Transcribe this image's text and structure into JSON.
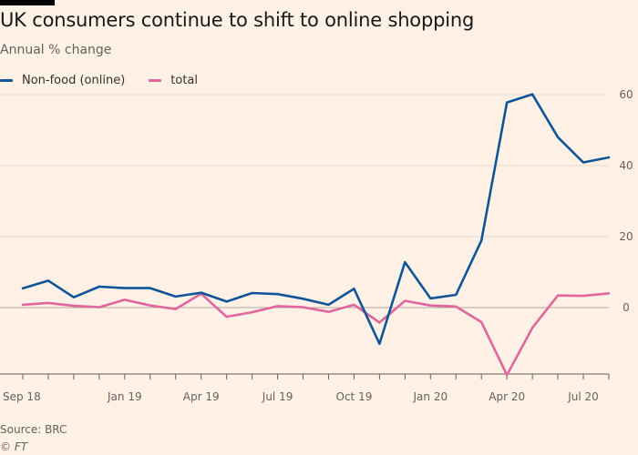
{
  "title": "UK consumers continue to shift to online shopping",
  "subtitle": "Annual % change",
  "source": "Source: BRC",
  "copyright": "© FT",
  "chart_data": {
    "type": "line",
    "title": "UK consumers continue to shift to online shopping",
    "ylabel": "Annual % change",
    "xlabel": "",
    "ylim": [
      -19,
      62
    ],
    "yticks": [
      0,
      20,
      40,
      60
    ],
    "xticks": [
      "Sep 18",
      "Jan 19",
      "Apr 19",
      "Jul 19",
      "Oct 19",
      "Jan 20",
      "Apr 20",
      "Jul 20"
    ],
    "xtick_positions": [
      0,
      4,
      7,
      10,
      13,
      16,
      19,
      22
    ],
    "num_points": 24,
    "legend": "top-left",
    "series": [
      {
        "name": "Non-food (online)",
        "color": "#0f5499",
        "values": [
          5.4,
          7.6,
          2.9,
          5.9,
          5.5,
          5.5,
          3.1,
          4.2,
          1.7,
          4.1,
          3.8,
          2.5,
          0.8,
          5.3,
          -10.2,
          12.8,
          2.6,
          3.6,
          18.9,
          57.8,
          60.1,
          48.0,
          40.9,
          42.3
        ]
      },
      {
        "name": "total",
        "color": "#e0669e",
        "values": [
          0.8,
          1.3,
          0.5,
          0.1,
          2.2,
          0.6,
          -0.4,
          3.9,
          -2.6,
          -1.3,
          0.4,
          0.1,
          -1.2,
          0.8,
          -4.2,
          1.9,
          0.6,
          0.3,
          -4.1,
          -19.0,
          -5.7,
          3.4,
          3.3,
          4.0
        ]
      }
    ]
  }
}
